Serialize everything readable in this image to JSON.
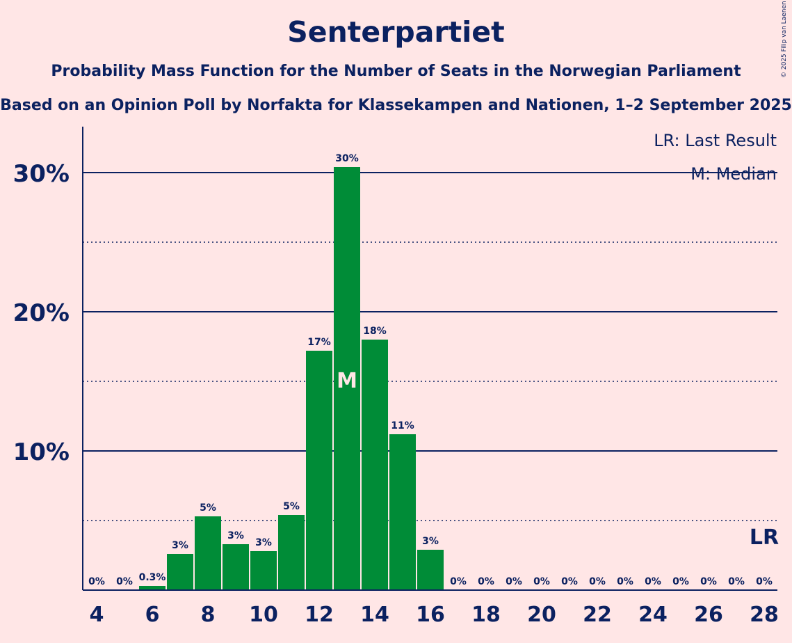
{
  "title": "Senterpartiet",
  "subtitle": "Probability Mass Function for the Number of Seats in the Norwegian Parliament",
  "subtitle2": "Based on an Opinion Poll by Norfakta for Klassekampen and Nationen, 1–2 September 2025",
  "copyright": "© 2025 Filip van Laenen",
  "legend": {
    "last_result": "LR: Last Result",
    "median": "M: Median"
  },
  "markers": {
    "median_letter": "M",
    "last_result_letter": "LR"
  },
  "colors": {
    "background": "#FFE6E6",
    "bar": "#008C37",
    "text": "#0B2160"
  },
  "chart_data": {
    "type": "bar",
    "x": [
      4,
      5,
      6,
      7,
      8,
      9,
      10,
      11,
      12,
      13,
      14,
      15,
      16,
      17,
      18,
      19,
      20,
      21,
      22,
      23,
      24,
      25,
      26,
      27,
      28
    ],
    "values": [
      0,
      0,
      0.3,
      2.6,
      5.3,
      3.3,
      2.8,
      5.4,
      17.2,
      30.4,
      18.0,
      11.2,
      2.9,
      0,
      0,
      0,
      0,
      0,
      0,
      0,
      0,
      0,
      0,
      0,
      0
    ],
    "value_labels": [
      "0%",
      "0%",
      "0.3%",
      "3%",
      "5%",
      "3%",
      "3%",
      "5%",
      "17%",
      "30%",
      "18%",
      "11%",
      "3%",
      "0%",
      "0%",
      "0%",
      "0%",
      "0%",
      "0%",
      "0%",
      "0%",
      "0%",
      "0%",
      "0%",
      "0%"
    ],
    "x_ticks": [
      4,
      6,
      8,
      10,
      12,
      14,
      16,
      18,
      20,
      22,
      24,
      26,
      28
    ],
    "y_ticks": [
      10,
      20,
      30
    ],
    "y_tick_labels": [
      "10%",
      "20%",
      "30%"
    ],
    "ylim": [
      0,
      33
    ],
    "median_seat": 13,
    "last_result_seat": 28,
    "grid": "solid at 10% steps, dotted at 5% steps",
    "legend_position": "top-right"
  }
}
